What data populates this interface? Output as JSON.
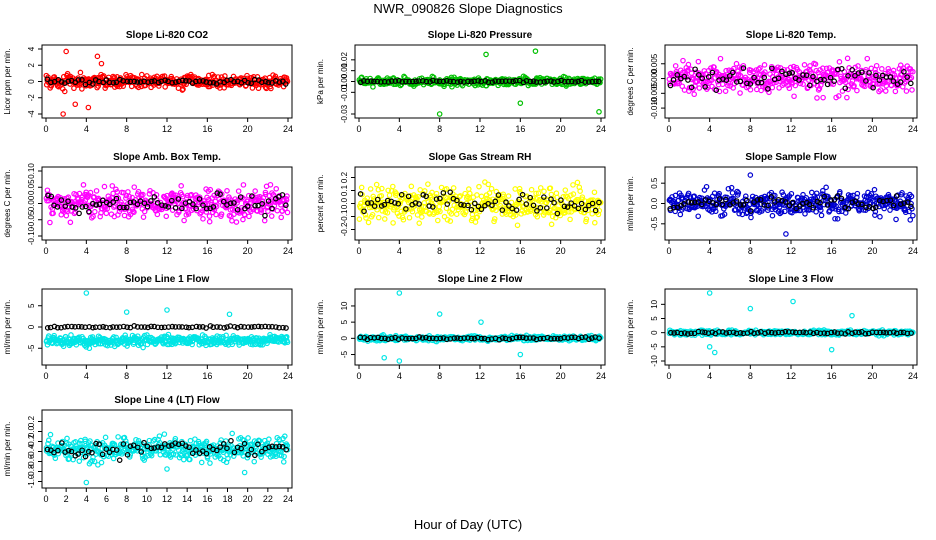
{
  "figure": {
    "title": "NWR_090826  Slope Diagnostics",
    "xlabel": "Hour of Day (UTC)"
  },
  "chart_data": [
    {
      "type": "scatter",
      "title": "Slope Li-820 CO2",
      "ylabel": "Licor ppm per min.",
      "xlim": [
        0,
        24
      ],
      "ylim": [
        -4,
        4
      ],
      "xticks": [
        "0",
        "4",
        "8",
        "12",
        "16",
        "20",
        "24"
      ],
      "yticks": [
        "-4",
        "-2",
        "0",
        "2",
        "4"
      ],
      "yticks_values": [
        -4,
        -2,
        0,
        2,
        4
      ],
      "color": "#ff0000",
      "spread": 0.35,
      "sparse_spread": 0.12,
      "outliers": [
        [
          2.0,
          3.7
        ],
        [
          1.7,
          -4.0
        ],
        [
          5.1,
          3.1
        ],
        [
          5.5,
          2.2
        ],
        [
          2.9,
          -2.8
        ],
        [
          4.2,
          -3.2
        ]
      ],
      "grid": false
    },
    {
      "type": "scatter",
      "title": "Slope Li-820 Pressure",
      "ylabel": "kPa per min.",
      "xlim": [
        0,
        24
      ],
      "ylim": [
        -0.03,
        0.03
      ],
      "xticks": [
        "0",
        "4",
        "8",
        "12",
        "16",
        "20",
        "24"
      ],
      "yticks": [
        "-0.03",
        "-0.01",
        "0.00",
        "0.01",
        "0.02"
      ],
      "yticks_values": [
        -0.03,
        -0.01,
        0,
        0.01,
        0.02
      ],
      "color": "#00c000",
      "spread": 0.2,
      "sparse_spread": 0.06,
      "outliers": [
        [
          8.0,
          -0.03
        ],
        [
          16.0,
          -0.02
        ],
        [
          23.8,
          -0.028
        ],
        [
          12.6,
          0.025
        ],
        [
          17.5,
          0.028
        ]
      ],
      "grid": false
    },
    {
      "type": "scatter",
      "title": "Slope Li-820 Temp.",
      "ylabel": "degrees C per min.",
      "xlim": [
        0,
        24
      ],
      "ylim": [
        -0.012,
        0.01
      ],
      "xticks": [
        "0",
        "4",
        "8",
        "12",
        "16",
        "20",
        "24"
      ],
      "yticks": [
        "-0.010",
        "-0.005",
        "0.000",
        "0.005"
      ],
      "yticks_values": [
        -0.01,
        -0.005,
        0,
        0.005
      ],
      "color": "#ff00ff",
      "spread": 0.8,
      "sparse_spread": 0.5,
      "outliers": [],
      "grid": false
    },
    {
      "type": "scatter",
      "title": "Slope Amb. Box Temp.",
      "ylabel": "degrees C per min.",
      "xlim": [
        0,
        24
      ],
      "ylim": [
        -0.1,
        0.1
      ],
      "xticks": [
        "0",
        "4",
        "8",
        "12",
        "16",
        "20",
        "24"
      ],
      "yticks": [
        "-0.10",
        "-0.05",
        "0.00",
        "0.05",
        "0.10"
      ],
      "yticks_values": [
        -0.1,
        -0.05,
        0,
        0.05,
        0.1
      ],
      "color": "#ff00ff",
      "spread": 0.8,
      "sparse_spread": 0.45,
      "outliers": [],
      "grid": false
    },
    {
      "type": "scatter",
      "title": "Slope Gas Stream RH",
      "ylabel": "percent per min.",
      "xlim": [
        0,
        24
      ],
      "ylim": [
        -0.25,
        0.25
      ],
      "xticks": [
        "0",
        "4",
        "8",
        "12",
        "16",
        "20",
        "24"
      ],
      "yticks": [
        "-0.2",
        "-0.1",
        "0.0",
        "0.1",
        "0.2"
      ],
      "yticks_values": [
        -0.2,
        -0.1,
        0,
        0.1,
        0.2
      ],
      "color": "#ffff00",
      "spread": 0.85,
      "sparse_spread": 0.55,
      "outliers": [],
      "grid": false
    },
    {
      "type": "scatter",
      "title": "Slope Sample Flow",
      "ylabel": "ml/min per min.",
      "xlim": [
        0,
        24
      ],
      "ylim": [
        -0.8,
        0.8
      ],
      "xticks": [
        "0",
        "4",
        "8",
        "12",
        "16",
        "20",
        "24"
      ],
      "yticks": [
        "-0.5",
        "0.0",
        "0.5"
      ],
      "yticks_values": [
        -0.5,
        0,
        0.5
      ],
      "color": "#0000d0",
      "spread": 0.65,
      "sparse_spread": 0.35,
      "outliers": [
        [
          11.5,
          -0.75
        ],
        [
          8.0,
          0.7
        ]
      ],
      "grid": false
    },
    {
      "type": "scatter",
      "title": "Slope Line 1 Flow",
      "ylabel": "ml/min per min.",
      "xlim": [
        0,
        24
      ],
      "ylim": [
        -8,
        8
      ],
      "xticks": [
        "0",
        "4",
        "8",
        "12",
        "16",
        "20",
        "24"
      ],
      "yticks": [
        "-5",
        "0",
        "5"
      ],
      "yticks_values": [
        -5,
        0,
        5
      ],
      "color": "#00e5e5",
      "spread": 0.25,
      "sparse_spread": 0.05,
      "offset": -0.2,
      "outliers": [
        [
          4.0,
          8.0
        ],
        [
          12.0,
          4.0
        ],
        [
          8.0,
          3.5
        ],
        [
          4.3,
          -5.0
        ],
        [
          18.2,
          3.0
        ]
      ],
      "grid": false
    },
    {
      "type": "scatter",
      "title": "Slope Line 2 Flow",
      "ylabel": "ml/min per min.",
      "xlim": [
        0,
        24
      ],
      "ylim": [
        -7,
        14
      ],
      "xticks": [
        "0",
        "4",
        "8",
        "12",
        "16",
        "20",
        "24"
      ],
      "yticks": [
        "-5",
        "0",
        "5",
        "10"
      ],
      "yticks_values": [
        -5,
        0,
        5,
        10
      ],
      "color": "#00e5e5",
      "spread": 0.12,
      "sparse_spread": 0.06,
      "outliers": [
        [
          4.0,
          14.0
        ],
        [
          8.0,
          7.5
        ],
        [
          12.1,
          5.0
        ],
        [
          2.5,
          -6.0
        ],
        [
          4.0,
          -7.0
        ],
        [
          16.0,
          -5.0
        ]
      ],
      "grid": false
    },
    {
      "type": "scatter",
      "title": "Slope Line 3 Flow",
      "ylabel": "ml/min per min.",
      "xlim": [
        0,
        24
      ],
      "ylim": [
        -10,
        14
      ],
      "xticks": [
        "0",
        "4",
        "8",
        "12",
        "16",
        "20",
        "24"
      ],
      "yticks": [
        "-10",
        "-5",
        "0",
        "5",
        "10"
      ],
      "yticks_values": [
        -10,
        -5,
        0,
        5,
        10
      ],
      "color": "#00e5e5",
      "spread": 0.12,
      "sparse_spread": 0.06,
      "outliers": [
        [
          4.0,
          14.0
        ],
        [
          12.2,
          11.0
        ],
        [
          8.0,
          8.5
        ],
        [
          18.0,
          6.0
        ],
        [
          4.5,
          -7.0
        ],
        [
          16.0,
          -6.0
        ],
        [
          4.0,
          -5.0
        ]
      ],
      "grid": false
    },
    {
      "type": "scatter",
      "title": "Slope Line 4 (LT) Flow",
      "ylabel": "ml/min per min.",
      "xlim": [
        0,
        24
      ],
      "ylim": [
        -1.05,
        0.35
      ],
      "xticks": [
        "0",
        "2",
        "4",
        "6",
        "8",
        "10",
        "12",
        "14",
        "16",
        "18",
        "20",
        "22",
        "24"
      ],
      "yticks": [
        "-1.0",
        "-0.8",
        "-0.6",
        "-0.4",
        "-0.2",
        "0.0",
        "0.2"
      ],
      "yticks_values": [
        -1,
        -0.8,
        -0.6,
        -0.4,
        -0.2,
        0,
        0.2
      ],
      "color": "#00e5e5",
      "spread": 0.55,
      "sparse_spread": 0.4,
      "outliers": [
        [
          12.0,
          -0.75
        ],
        [
          19.7,
          -0.82
        ],
        [
          4.0,
          -1.02
        ],
        [
          16.0,
          -0.5
        ]
      ],
      "grid": false
    }
  ]
}
